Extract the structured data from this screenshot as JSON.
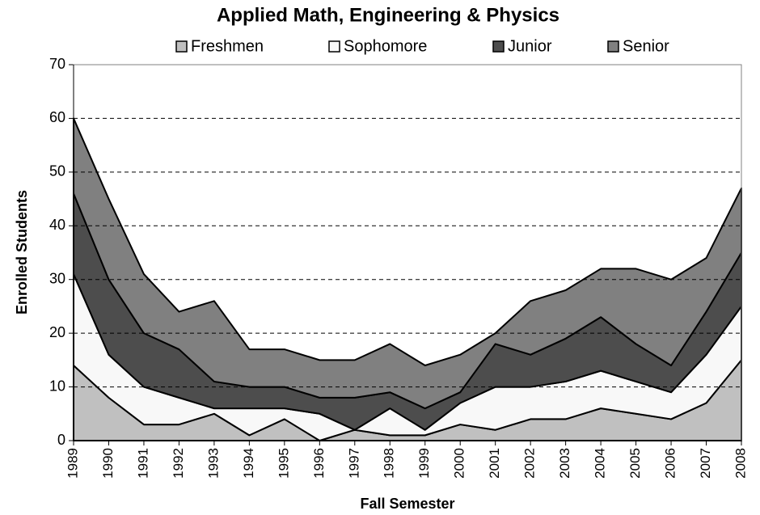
{
  "chart_data": {
    "type": "stacked_area",
    "title": "Applied Math, Engineering & Physics",
    "x_label": "Fall Semester",
    "y_label": "Enrolled Students",
    "categories": [
      "1989",
      "1990",
      "1991",
      "1992",
      "1993",
      "1994",
      "1995",
      "1996",
      "1997",
      "1998",
      "1999",
      "2000",
      "2001",
      "2002",
      "2003",
      "2004",
      "2005",
      "2006",
      "2007",
      "2008"
    ],
    "series": [
      {
        "name": "Freshmen",
        "color": "#c0c0c0",
        "values": [
          14,
          8,
          3,
          3,
          5,
          1,
          4,
          0,
          2,
          1,
          1,
          3,
          2,
          4,
          4,
          6,
          5,
          4,
          7,
          15
        ]
      },
      {
        "name": "Sophomore",
        "color": "#f8f8f8",
        "values": [
          17,
          8,
          7,
          5,
          1,
          5,
          2,
          5,
          0,
          5,
          1,
          4,
          8,
          6,
          7,
          7,
          6,
          5,
          9,
          10
        ]
      },
      {
        "name": "Junior",
        "color": "#4d4d4d",
        "values": [
          15,
          14,
          10,
          9,
          5,
          4,
          4,
          3,
          6,
          3,
          4,
          2,
          8,
          6,
          8,
          10,
          7,
          5,
          8,
          10
        ]
      },
      {
        "name": "Senior",
        "color": "#808080",
        "values": [
          14,
          15,
          11,
          7,
          15,
          7,
          7,
          7,
          7,
          9,
          8,
          7,
          2,
          10,
          9,
          9,
          14,
          16,
          10,
          12
        ]
      }
    ],
    "ylim": [
      0,
      70
    ],
    "yticks": [
      0,
      10,
      20,
      30,
      40,
      50,
      60,
      70
    ],
    "grid": true,
    "legend": "top"
  }
}
